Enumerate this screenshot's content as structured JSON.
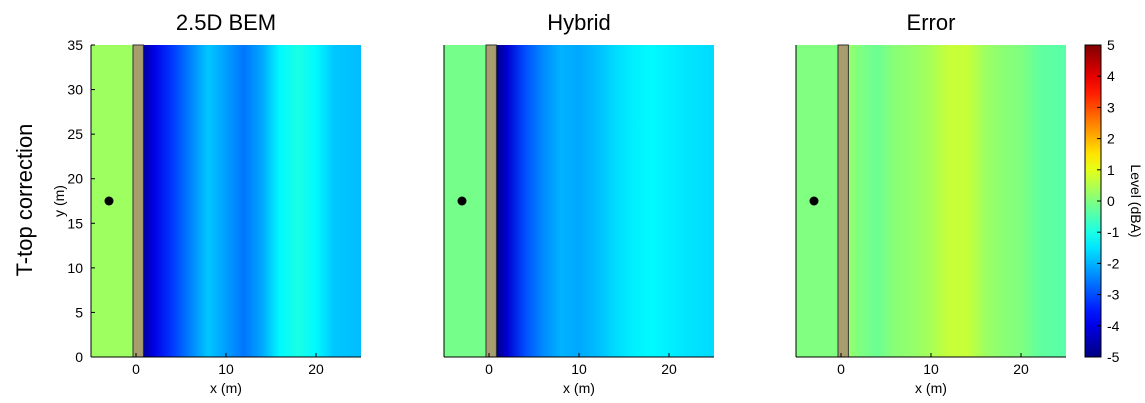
{
  "figure": {
    "row_label": "T-top correction",
    "colorbar": {
      "label": "Level (dBA)",
      "range": [
        -5,
        5
      ],
      "ticks": [
        "5",
        "4",
        "3",
        "2",
        "1",
        "0",
        "-1",
        "-2",
        "-3",
        "-4",
        "-5"
      ]
    }
  },
  "chart_data": [
    {
      "type": "heatmap",
      "title": "2.5D BEM",
      "xlabel": "x (m)",
      "ylabel": "y (m)",
      "xlim": [
        -5,
        25
      ],
      "ylim": [
        0,
        35
      ],
      "xticks": [
        "0",
        "10",
        "20"
      ],
      "yticks": [
        "0",
        "5",
        "10",
        "15",
        "20",
        "25",
        "30",
        "35"
      ],
      "barrier_x": [
        0,
        0.6
      ],
      "source": {
        "x": -3,
        "y": 17.5
      },
      "profile_x": [
        -5,
        0.6,
        1,
        2,
        4,
        6,
        8,
        10,
        12,
        14,
        16,
        18,
        20,
        22,
        25
      ],
      "profile_level": [
        0,
        -4.8,
        -4.6,
        -4.0,
        -3.2,
        -2.5,
        -1.8,
        -2.2,
        -2.6,
        -2.1,
        -1.3,
        -1.0,
        -1.3,
        -1.8,
        -1.9
      ],
      "left_region_level": 0.3
    },
    {
      "type": "heatmap",
      "title": "Hybrid",
      "xlabel": "x (m)",
      "ylabel": "",
      "xlim": [
        -5,
        25
      ],
      "ylim": [
        0,
        35
      ],
      "xticks": [
        "0",
        "10",
        "20"
      ],
      "yticks": [],
      "barrier_x": [
        0,
        0.6
      ],
      "source": {
        "x": -3,
        "y": 17.5
      },
      "profile_x": [
        -5,
        0.6,
        1,
        2,
        4,
        6,
        8,
        10,
        12,
        14,
        16,
        18,
        20,
        22,
        25
      ],
      "profile_level": [
        0,
        -4.9,
        -4.8,
        -4.2,
        -3.0,
        -2.4,
        -2.0,
        -2.1,
        -1.9,
        -1.6,
        -1.4,
        -1.3,
        -1.4,
        -1.5,
        -1.6
      ],
      "left_region_level": -0.1
    },
    {
      "type": "heatmap",
      "title": "Error",
      "xlabel": "x (m)",
      "ylabel": "",
      "xlim": [
        -5,
        25
      ],
      "ylim": [
        0,
        35
      ],
      "xticks": [
        "0",
        "10",
        "20"
      ],
      "yticks": [],
      "barrier_x": [
        0,
        0.6
      ],
      "source": {
        "x": -3,
        "y": 17.5
      },
      "profile_x": [
        -5,
        0.6,
        1,
        2,
        4,
        6,
        8,
        10,
        12,
        14,
        16,
        18,
        20,
        22,
        25
      ],
      "profile_level": [
        0,
        -0.1,
        0.2,
        0.0,
        -0.2,
        0.1,
        0.2,
        0.4,
        0.7,
        0.7,
        0.3,
        0.1,
        0.0,
        -0.3,
        -0.4
      ],
      "left_region_level": 0.0
    }
  ]
}
